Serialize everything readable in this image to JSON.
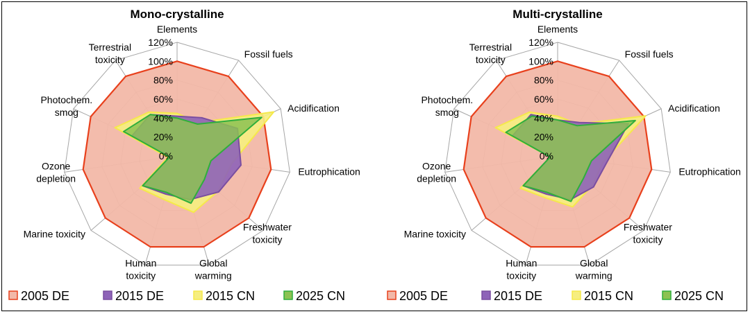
{
  "chart_data": [
    {
      "type": "radar",
      "title": "Mono-crystalline",
      "categories": [
        "Elements",
        "Fossil fuels",
        "Acidification",
        "Eutrophication",
        "Freshwater toxicity",
        "Global warming",
        "Human toxicity",
        "Marine toxicity",
        "Ozone depletion",
        "Photochem. smog",
        "Terrestrial toxicity"
      ],
      "ticks": [
        "0%",
        "20%",
        "40%",
        "60%",
        "80%",
        "100%",
        "120%"
      ],
      "rmax": 120,
      "series": [
        {
          "name": "2005 DE",
          "values": [
            100,
            100,
            100,
            100,
            100,
            100,
            100,
            100,
            100,
            100,
            100
          ]
        },
        {
          "name": "2015 DE",
          "values": [
            42,
            48,
            70,
            68,
            58,
            48,
            42,
            48,
            8,
            52,
            52
          ]
        },
        {
          "name": "2015 CN",
          "values": [
            45,
            42,
            112,
            58,
            57,
            62,
            48,
            52,
            10,
            72,
            55
          ]
        },
        {
          "name": "2025 CN",
          "values": [
            40,
            40,
            98,
            36,
            38,
            52,
            40,
            48,
            8,
            62,
            52
          ]
        }
      ]
    },
    {
      "type": "radar",
      "title": "Multi-crystalline",
      "categories": [
        "Elements",
        "Fossil fuels",
        "Acidification",
        "Eutrophication",
        "Freshwater toxicity",
        "Global warming",
        "Human toxicity",
        "Marine toxicity",
        "Ozone depletion",
        "Photochem. smog",
        "Terrestrial toxicity"
      ],
      "ticks": [
        "0%",
        "20%",
        "40%",
        "60%",
        "80%",
        "100%",
        "120%"
      ],
      "rmax": 120,
      "series": [
        {
          "name": "2005 DE",
          "values": [
            100,
            100,
            100,
            100,
            100,
            100,
            100,
            100,
            100,
            100,
            100
          ]
        },
        {
          "name": "2015 DE",
          "values": [
            38,
            42,
            82,
            52,
            50,
            48,
            42,
            48,
            8,
            52,
            52
          ]
        },
        {
          "name": "2015 CN",
          "values": [
            42,
            40,
            102,
            48,
            48,
            56,
            46,
            52,
            8,
            72,
            55
          ]
        },
        {
          "name": "2025 CN",
          "values": [
            38,
            38,
            90,
            36,
            36,
            50,
            40,
            48,
            8,
            60,
            50
          ]
        }
      ]
    }
  ],
  "legend": {
    "placement": "bottom",
    "items": [
      "2005 DE",
      "2015 DE",
      "2015 CN",
      "2025 CN"
    ]
  },
  "colors": {
    "2005 DE": {
      "stroke": "#e8401c",
      "fill": "#f2b8a8"
    },
    "2015 DE": {
      "stroke": "#7a4ea0",
      "fill": "#8e63b8"
    },
    "2015 CN": {
      "stroke": "#f5e94a",
      "fill": "#f6ee80"
    },
    "2025 CN": {
      "stroke": "#2fae3c",
      "fill": "#8cc252"
    },
    "grid": "#a6a6a6"
  }
}
